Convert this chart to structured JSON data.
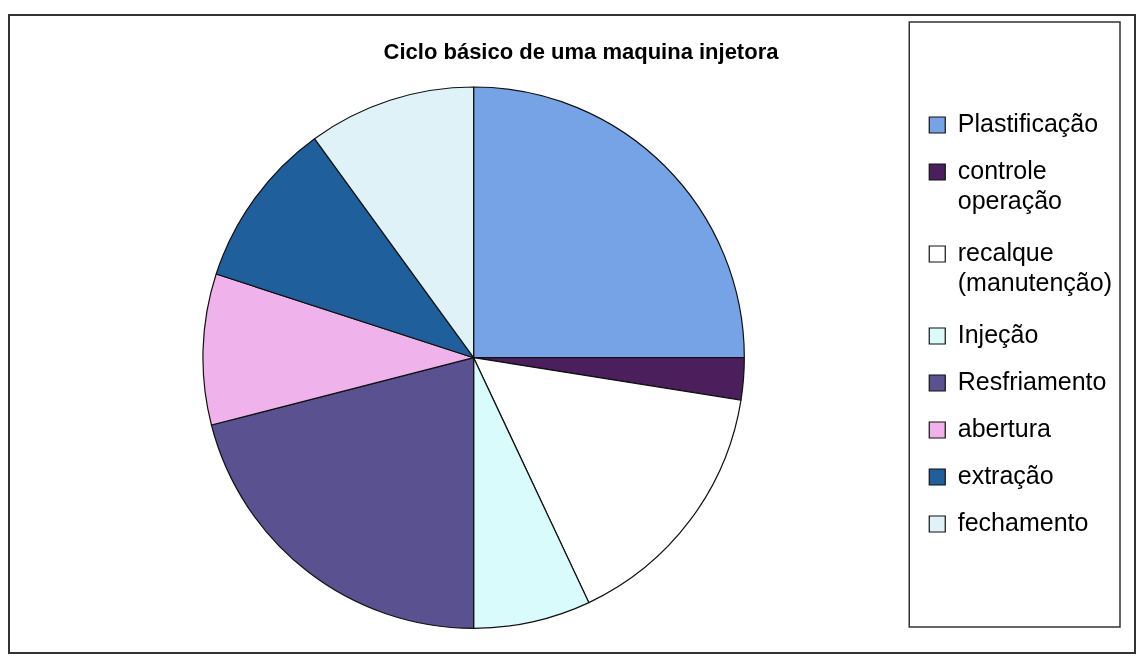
{
  "chart_data": {
    "type": "pie",
    "title": "Ciclo básico de uma maquina injetora",
    "categories": [
      "Plastificação",
      "controle operação",
      "recalque (manutenção)",
      "Injeção",
      "Resfriamento",
      "abertura",
      "extração",
      "fechamento"
    ],
    "values": [
      25,
      2.5,
      15.5,
      7,
      21,
      9,
      10,
      10
    ],
    "colors": [
      "#76a3e6",
      "#4a1f5c",
      "#ffffff",
      "#d9fbfb",
      "#5a5290",
      "#f0b2ea",
      "#1f5f9c",
      "#dff2f8"
    ],
    "legend": "right"
  }
}
